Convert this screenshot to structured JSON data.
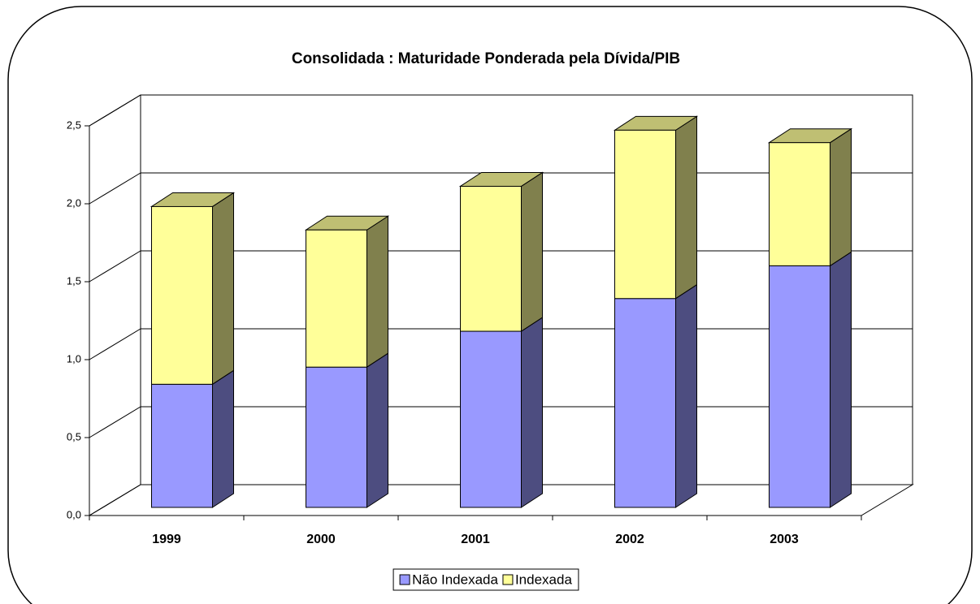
{
  "chart_data": {
    "type": "bar3d_stacked",
    "title": "Consolidada : Maturidade Ponderada pela Dívida/PIB",
    "categories": [
      "1999",
      "2000",
      "2001",
      "2002",
      "2003"
    ],
    "series": [
      {
        "name": "Não Indexada",
        "color": "#9999ff",
        "values": [
          0.79,
          0.9,
          1.13,
          1.34,
          1.55
        ]
      },
      {
        "name": "Indexada",
        "color": "#ffff99",
        "values": [
          1.14,
          0.88,
          0.93,
          1.08,
          0.79
        ]
      }
    ],
    "ylim": [
      0,
      2.5
    ],
    "yticks": [
      {
        "value": 0,
        "label": "0,0"
      },
      {
        "value": 0.5,
        "label": "0,5"
      },
      {
        "value": 1,
        "label": "1,0"
      },
      {
        "value": 1.5,
        "label": "1,5"
      },
      {
        "value": 2,
        "label": "2,0"
      },
      {
        "value": 2.5,
        "label": "2,5"
      }
    ],
    "grid": true,
    "legend": "bottom"
  }
}
